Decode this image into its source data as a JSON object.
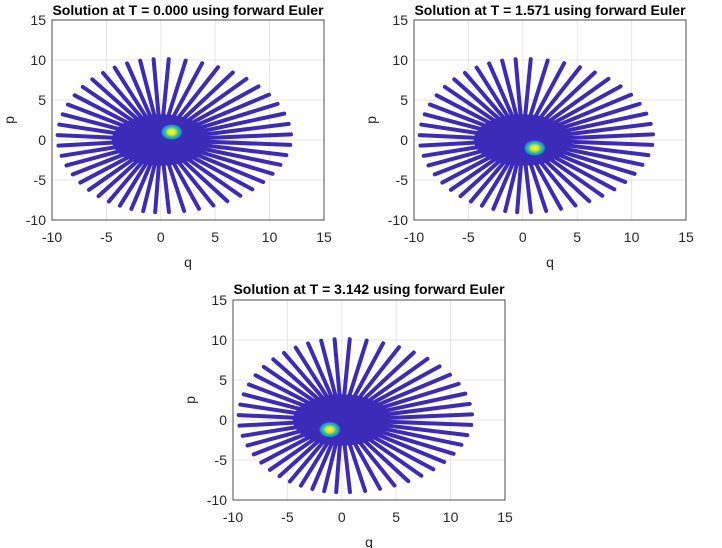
{
  "figure": {
    "colors": {
      "ray": "#3b2bb8",
      "grid": "#e6e6e6",
      "axis": "#262626",
      "blob_core": "#f9fb0e",
      "blob_mid": "#35c58f",
      "blob_outer": "#1e8fd6"
    }
  },
  "chart_data": [
    {
      "type": "scatter",
      "title": "Solution at T = 0.000 using forward Euler",
      "xlabel": "q",
      "ylabel": "p",
      "xlim": [
        -10,
        15
      ],
      "ylim": [
        -10,
        15
      ],
      "xticks": [
        "-10",
        "-5",
        "0",
        "5",
        "10",
        "15"
      ],
      "yticks": [
        "-10",
        "-5",
        "0",
        "5",
        "10",
        "15"
      ],
      "grid": true,
      "ray_count": 48,
      "ray_center": [
        0,
        0
      ],
      "ray_length_radius_x": [
        9.5,
        12
      ],
      "ray_length_radius_y": 11,
      "blob_center": [
        1.0,
        1.0
      ]
    },
    {
      "type": "scatter",
      "title": "Solution at T = 1.571 using forward Euler",
      "xlabel": "q",
      "ylabel": "p",
      "xlim": [
        -10,
        15
      ],
      "ylim": [
        -10,
        15
      ],
      "xticks": [
        "-10",
        "-5",
        "0",
        "5",
        "10",
        "15"
      ],
      "yticks": [
        "-10",
        "-5",
        "0",
        "5",
        "10",
        "15"
      ],
      "grid": true,
      "ray_count": 48,
      "ray_center": [
        0,
        0
      ],
      "ray_length_radius_x": [
        9.5,
        12
      ],
      "ray_length_radius_y": 11,
      "blob_center": [
        1.1,
        -1.0
      ]
    },
    {
      "type": "scatter",
      "title": "Solution at T = 3.142 using forward Euler",
      "xlabel": "q",
      "ylabel": "p",
      "xlim": [
        -10,
        15
      ],
      "ylim": [
        -10,
        15
      ],
      "xticks": [
        "-10",
        "-5",
        "0",
        "5",
        "10",
        "15"
      ],
      "yticks": [
        "-10",
        "-5",
        "0",
        "5",
        "10",
        "15"
      ],
      "grid": true,
      "ray_count": 48,
      "ray_center": [
        0,
        0
      ],
      "ray_length_radius_x": [
        9.5,
        12
      ],
      "ray_length_radius_y": 11,
      "blob_center": [
        -1.1,
        -1.2
      ]
    }
  ]
}
